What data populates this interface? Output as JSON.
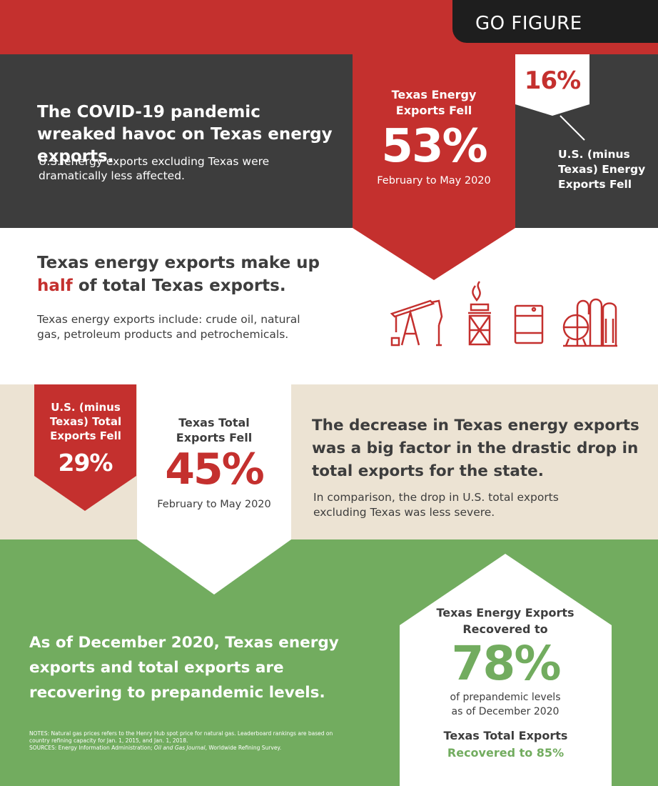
{
  "header": {
    "label": "GO FIGURE"
  },
  "section1": {
    "headline": "The COVID-19 pandemic wreaked havoc on Texas energy exports.",
    "subtext": "U.S. energy exports excluding Texas were dramatically less affected."
  },
  "texas_energy_fell": {
    "label": "Texas Energy Exports Fell",
    "value": "53%",
    "period": "February to May 2020"
  },
  "us_energy_fell": {
    "value": "16%",
    "label": "U.S. (minus Texas) Energy Exports Fell"
  },
  "section2": {
    "headline_part1": "Texas energy exports make up",
    "headline_highlight": "half",
    "headline_part2": "of total Texas exports.",
    "subtext": "Texas energy exports include: crude oil, natural gas, petroleum products and petrochemicals.",
    "icons": [
      "pumpjack-icon",
      "gas-flare-icon",
      "barrel-icon",
      "petrochemical-plant-icon"
    ]
  },
  "us_total_fell": {
    "label": "U.S. (minus Texas) Total Exports Fell",
    "value": "29%"
  },
  "texas_total_fell": {
    "label": "Texas Total Exports Fell",
    "value": "45%",
    "period": "February to May 2020"
  },
  "section3": {
    "headline": "The decrease in Texas energy exports was a big factor in the drastic drop in total exports for the state.",
    "subtext": "In comparison, the drop in U.S. total exports excluding Texas was less severe."
  },
  "section4": {
    "headline": "As of December 2020, Texas energy exports and total exports are recovering to prepandemic levels.",
    "notes_line": "NOTES: Natural gas prices refers to the Henry Hub spot price for natural gas. Leaderboard rankings are based on country refining capacity for Jan. 1, 2015, and Jan. 1, 2018.",
    "sources_prefix": "SOURCES: Energy Information Administration; ",
    "sources_italic": "Oil and Gas Journal",
    "sources_suffix": ", Worldwide Refining Survey."
  },
  "recovery": {
    "label": "Texas Energy Exports Recovered to",
    "value": "78%",
    "caption": "of prepandemic levels as of December 2020",
    "total_label": "Texas Total Exports",
    "total_value": "Recovered to 85%"
  },
  "colors": {
    "red": "#c4302e",
    "dark_gray": "#3d3d3d",
    "beige": "#ece3d3",
    "green": "#72ac5f",
    "black": "#1e1e1e"
  }
}
